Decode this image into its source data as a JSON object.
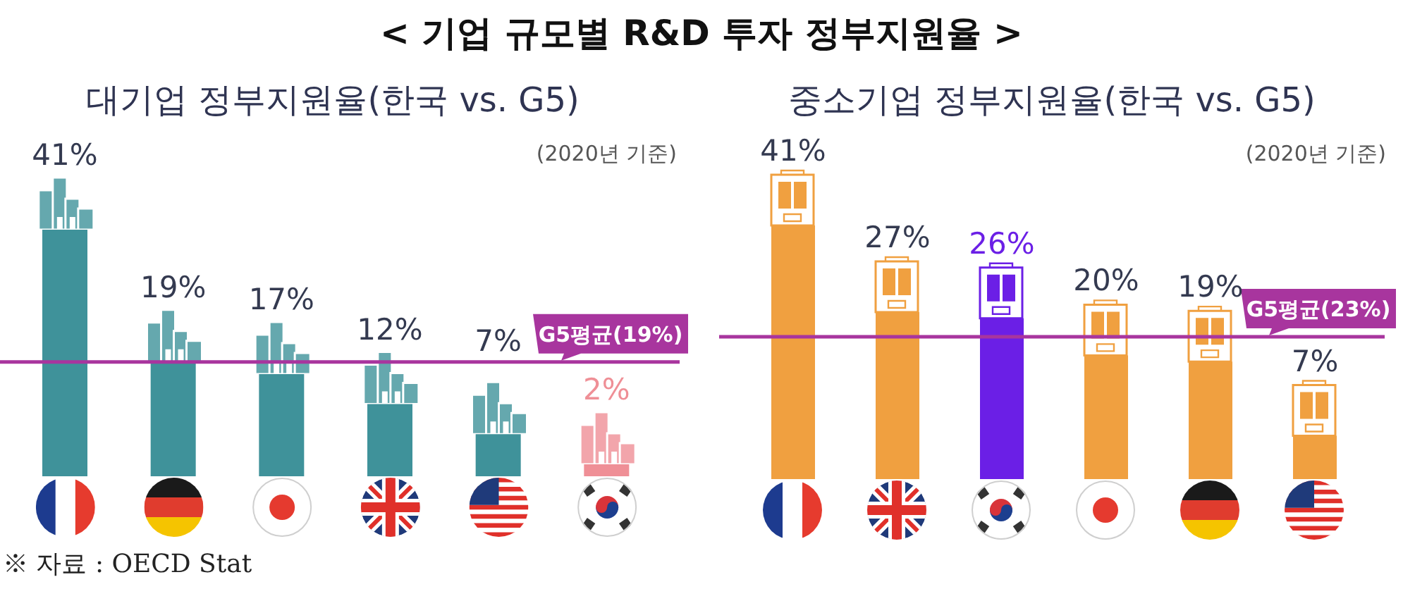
{
  "chart_data": [
    {
      "type": "bar",
      "title": "대기업 정부지원율(한국 vs. G5)",
      "subtitle": "(2020년 기준)",
      "categories": [
        null,
        null,
        null,
        null,
        null,
        null
      ],
      "values": [
        41,
        19,
        17,
        12,
        7,
        2
      ],
      "colors": [
        "#3f929a",
        "#3f929a",
        "#3f929a",
        "#3f929a",
        "#3f929a",
        "#ef8f96"
      ],
      "value_labels": [
        "41%",
        "19%",
        "17%",
        "12%",
        "7%",
        "2%"
      ],
      "ref_lines": [
        {
          "axis": "y",
          "value": 19,
          "label": "G5평균(19%)",
          "color": "#a8359e"
        }
      ],
      "tick_labels": false,
      "annotations": [
        "< 기업 규모별 R&D 투자 정부지원율 >",
        "※ 자료 : OECD Stat"
      ]
    },
    {
      "type": "bar",
      "title": "중소기업 정부지원율(한국 vs. G5)",
      "subtitle": "(2020년 기준)",
      "categories": [
        null,
        null,
        null,
        null,
        null,
        null
      ],
      "values": [
        41,
        27,
        26,
        20,
        19,
        7
      ],
      "colors": [
        "#f0a040",
        "#f0a040",
        "#6b1fe6",
        "#f0a040",
        "#f0a040",
        "#f0a040"
      ],
      "value_labels": [
        "41%",
        "27%",
        "26%",
        "20%",
        "19%",
        "7%"
      ],
      "ref_lines": [
        {
          "axis": "y",
          "value": 23,
          "label": "G5평균(23%)",
          "color": "#a8359e"
        }
      ],
      "tick_labels": false
    }
  ]
}
